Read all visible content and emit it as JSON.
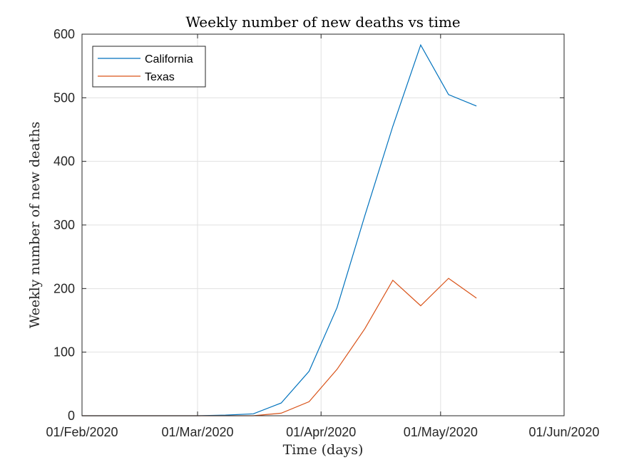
{
  "chart_data": {
    "type": "line",
    "title": "Weekly number of new deaths vs time",
    "xlabel": "Time (days)",
    "ylabel": "Weekly number of new deaths",
    "x_ticks": [
      "01/Feb/2020",
      "01/Mar/2020",
      "01/Apr/2020",
      "01/May/2020",
      "01/Jun/2020"
    ],
    "xlim": [
      "2020-02-01",
      "2020-06-01"
    ],
    "y_ticks": [
      0,
      100,
      200,
      300,
      400,
      500,
      600
    ],
    "ylim": [
      0,
      600
    ],
    "grid": true,
    "legend_position": "top-left",
    "x": [
      "2020-02-01",
      "2020-02-08",
      "2020-02-15",
      "2020-02-22",
      "2020-03-01",
      "2020-03-08",
      "2020-03-15",
      "2020-03-22",
      "2020-03-29",
      "2020-04-05",
      "2020-04-12",
      "2020-04-19",
      "2020-04-26",
      "2020-05-03",
      "2020-05-10"
    ],
    "series": [
      {
        "name": "California",
        "color": "#0072BD",
        "values": [
          0,
          0,
          0,
          0,
          0,
          1,
          3,
          20,
          70,
          170,
          315,
          455,
          583,
          505,
          487
        ]
      },
      {
        "name": "Texas",
        "color": "#D95319",
        "values": [
          0,
          0,
          0,
          0,
          0,
          0,
          0,
          4,
          22,
          73,
          137,
          213,
          173,
          216,
          185
        ]
      }
    ]
  }
}
